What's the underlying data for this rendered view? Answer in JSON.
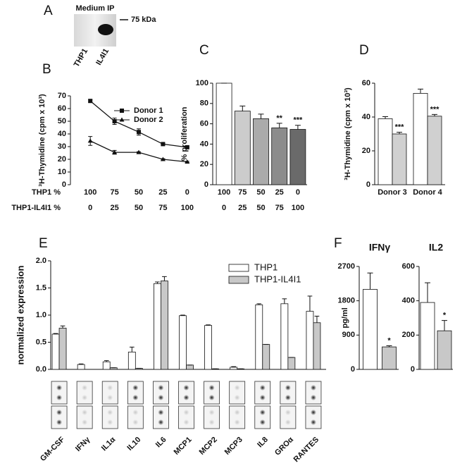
{
  "panel_labels": [
    "A",
    "B",
    "C",
    "D",
    "E",
    "F"
  ],
  "blot": {
    "title": "Medium IP",
    "marker": "75 kDa",
    "lanes": [
      "THP1",
      "IL4I1"
    ]
  },
  "chart_data": [
    {
      "type": "line",
      "ylabel": "³H-Thymidine (cpm x 10³)",
      "row_labels": [
        "THP1 %",
        "THP1-IL4I1 %"
      ],
      "categories": [
        "100",
        "75",
        "50",
        "25",
        "0"
      ],
      "categories_row2": [
        "0",
        "25",
        "50",
        "75",
        "100"
      ],
      "ylim": [
        0,
        70
      ],
      "yticks": [
        0,
        10,
        20,
        30,
        40,
        50,
        60,
        70
      ],
      "series": [
        {
          "name": "Donor 1",
          "color": "#111111",
          "marker": "square",
          "values": [
            66,
            50,
            41.5,
            32,
            29.5
          ],
          "errors": [
            1,
            2.5,
            2.5,
            0.5,
            0.5
          ]
        },
        {
          "name": "Donor 2",
          "color": "#111111",
          "marker": "triangle",
          "values": [
            34.5,
            25.5,
            25.5,
            20,
            18
          ],
          "errors": [
            3.5,
            1.5,
            0.5,
            0.5,
            0.5
          ]
        }
      ]
    },
    {
      "type": "bar",
      "ylabel": "% proliferation",
      "categories": [
        "100",
        "75",
        "50",
        "25",
        "0"
      ],
      "categories_row2": [
        "0",
        "25",
        "50",
        "75",
        "100"
      ],
      "ylim": [
        0,
        100
      ],
      "yticks": [
        0,
        20,
        40,
        60,
        80,
        100
      ],
      "values": [
        100,
        72.5,
        65,
        56,
        54.5
      ],
      "errors": [
        0,
        5,
        4.5,
        4.5,
        4
      ],
      "colors": [
        "#ffffff",
        "#cccccc",
        "#ababab",
        "#8c8c8c",
        "#6a6a6a"
      ],
      "annotations": [
        null,
        null,
        null,
        "**",
        "***"
      ]
    },
    {
      "type": "bar",
      "ylabel": "³H-Thymidine (cpm x 10³)",
      "categories": [
        "Donor 3",
        "Donor 4"
      ],
      "ylim": [
        0,
        60
      ],
      "yticks": [
        0,
        20,
        40,
        60
      ],
      "series": [
        {
          "color": "#ffffff",
          "values": [
            39,
            54
          ],
          "errors": [
            1.2,
            2.5
          ]
        },
        {
          "color": "#d0d0d0",
          "values": [
            30,
            40.5
          ],
          "errors": [
            1,
            1
          ],
          "annotations": [
            "***",
            "***"
          ]
        }
      ]
    },
    {
      "type": "bar",
      "ylabel": "normalized expression",
      "categories": [
        "GM-CSF",
        "IFNγ",
        "IL1α",
        "IL10",
        "IL6",
        "MCP1",
        "MCP2",
        "MCP3",
        "IL8",
        "GROα",
        "RANTES"
      ],
      "ylim": [
        0,
        2
      ],
      "yticks": [
        {
          "value": 0,
          "label": "0.0"
        },
        {
          "value": 0.5,
          "label": "0.5"
        },
        {
          "value": 1,
          "label": "1.0"
        },
        {
          "value": 1.5,
          "label": "1.5"
        },
        {
          "value": 2,
          "label": "2.0"
        }
      ],
      "series": [
        {
          "name": "THP1",
          "color": "#ffffff",
          "values": [
            0.65,
            0.09,
            0.14,
            0.32,
            1.58,
            0.99,
            0.81,
            0.04,
            1.19,
            1.21,
            1.07
          ],
          "errors": [
            0.01,
            0.01,
            0.02,
            0.09,
            0.03,
            0.01,
            0.01,
            0.01,
            0.02,
            0.09,
            0.28
          ]
        },
        {
          "name": "THP1-IL4I1",
          "color": "#c8c8c8",
          "values": [
            0.76,
            0,
            0.03,
            0.02,
            1.63,
            0.08,
            0.01,
            0.01,
            0.46,
            0.22,
            0.86
          ],
          "errors": [
            0.04,
            0,
            0,
            0,
            0.08,
            0,
            0,
            0,
            0,
            0,
            0.12
          ]
        }
      ]
    },
    {
      "type": "bar",
      "title": "IFNγ",
      "ylabel": "pg/ml",
      "ylim": [
        0,
        2700
      ],
      "yticks": [
        0,
        900,
        1800,
        2700
      ],
      "values": [
        2100,
        590
      ],
      "errors": [
        430,
        30
      ],
      "colors": [
        "#ffffff",
        "#c8c8c8"
      ],
      "annotations": [
        null,
        "*"
      ]
    },
    {
      "type": "bar",
      "title": "IL2",
      "ylim": [
        0,
        600
      ],
      "yticks": [
        0,
        200,
        400,
        600
      ],
      "values": [
        390,
        225
      ],
      "errors": [
        115,
        60
      ],
      "colors": [
        "#ffffff",
        "#c8c8c8"
      ],
      "annotations": [
        null,
        "*"
      ]
    }
  ]
}
